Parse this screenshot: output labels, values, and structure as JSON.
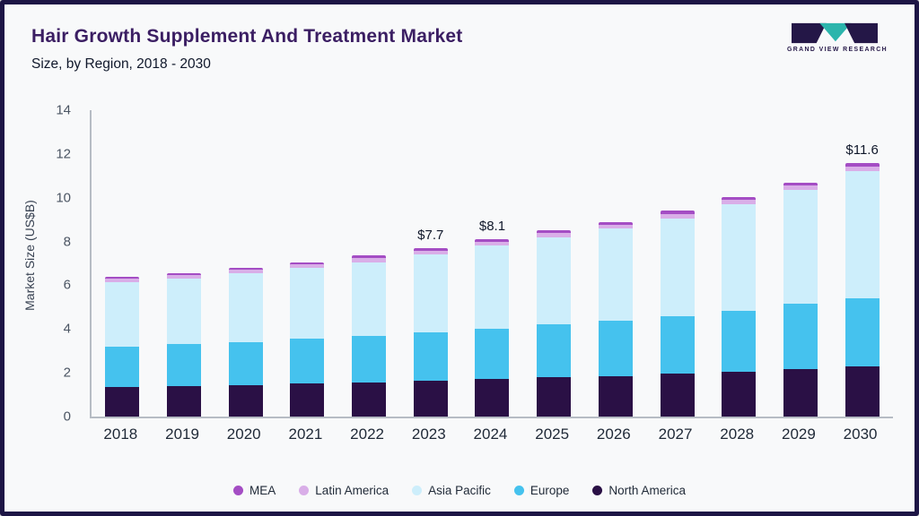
{
  "header": {
    "title": "Hair Growth Supplement And Treatment Market",
    "subtitle": "Size, by Region, 2018 - 2030",
    "logo_text": "GRAND VIEW RESEARCH"
  },
  "chart_data": {
    "type": "bar",
    "stacked": true,
    "title": "Hair Growth Supplement And Treatment Market Size, by Region, 2018 - 2030",
    "xlabel": "",
    "ylabel": "Market Size (US$B)",
    "ylim": [
      0,
      14
    ],
    "yticks": [
      0,
      2,
      4,
      6,
      8,
      10,
      12,
      14
    ],
    "grid": false,
    "legend_position": "bottom",
    "categories": [
      "2018",
      "2019",
      "2020",
      "2021",
      "2022",
      "2023",
      "2024",
      "2025",
      "2026",
      "2027",
      "2028",
      "2029",
      "2030"
    ],
    "series": [
      {
        "name": "North America",
        "color": "#2a1045",
        "values": [
          1.35,
          1.4,
          1.45,
          1.5,
          1.55,
          1.65,
          1.7,
          1.8,
          1.85,
          1.95,
          2.05,
          2.15,
          2.3
        ]
      },
      {
        "name": "Europe",
        "color": "#45c2ee",
        "values": [
          1.85,
          1.9,
          1.95,
          2.05,
          2.15,
          2.2,
          2.3,
          2.4,
          2.55,
          2.65,
          2.8,
          3.0,
          3.1
        ]
      },
      {
        "name": "Asia Pacific",
        "color": "#cdeefb",
        "values": [
          2.95,
          3.0,
          3.15,
          3.25,
          3.35,
          3.55,
          3.8,
          4.0,
          4.2,
          4.45,
          4.85,
          5.2,
          5.8
        ]
      },
      {
        "name": "Latin America",
        "color": "#d9aee8",
        "values": [
          0.15,
          0.15,
          0.15,
          0.15,
          0.18,
          0.18,
          0.18,
          0.18,
          0.18,
          0.2,
          0.2,
          0.2,
          0.22
        ]
      },
      {
        "name": "MEA",
        "color": "#a44dc4",
        "values": [
          0.1,
          0.1,
          0.1,
          0.1,
          0.12,
          0.12,
          0.12,
          0.12,
          0.12,
          0.15,
          0.15,
          0.15,
          0.18
        ]
      }
    ],
    "totals": [
      6.4,
      6.55,
      6.8,
      7.05,
      7.35,
      7.7,
      8.1,
      8.5,
      8.9,
      9.4,
      10.05,
      10.7,
      11.6
    ],
    "bar_labels": [
      "",
      "",
      "",
      "",
      "",
      "$7.7",
      "$8.1",
      "",
      "",
      "",
      "",
      "",
      "$11.6"
    ],
    "legend": [
      "MEA",
      "Latin America",
      "Asia Pacific",
      "Europe",
      "North America"
    ]
  }
}
